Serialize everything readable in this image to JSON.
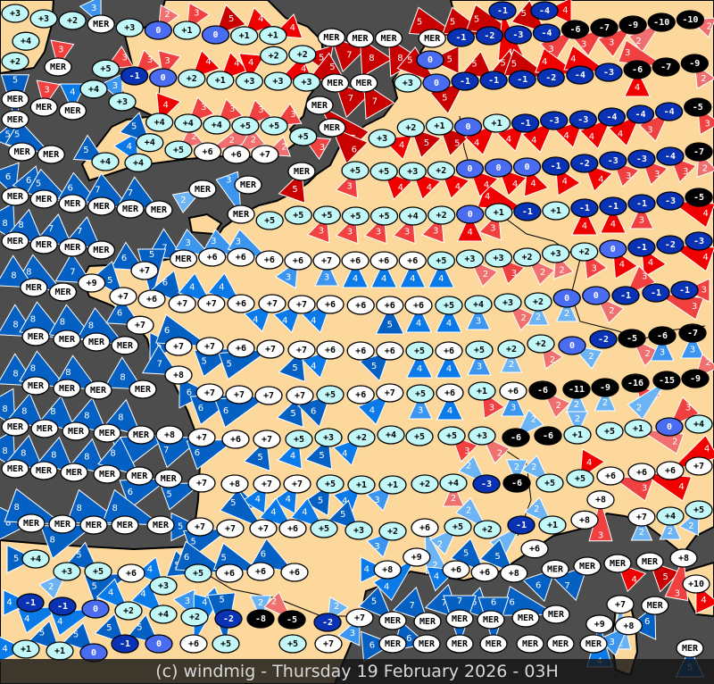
{
  "footer": {
    "credit": "(c) windmig - Thursday 19 February 2026 - 03H"
  },
  "colors": {
    "sea": "#4d4d4d",
    "land": "#fcd89c",
    "coast": "#000000",
    "temp_warm": "#ffffff",
    "temp_mild": "#c2f8f8",
    "temp_zero": "#4a6cf0",
    "temp_cold": "#0a32b4",
    "temp_frost": "#000000",
    "wind_red": {
      "2": "#f07070",
      "3": "#f04040",
      "4": "#f00000",
      "5": "#c80000"
    },
    "wind_blue": {
      "2": "#6cb4f4",
      "3": "#3c96f0",
      "4": "#0a7ae8",
      "5": "#0560c4"
    }
  },
  "legend_note": "",
  "stations": [
    [
      "+3",
      0,
      "",
      0
    ],
    [
      "+3",
      0,
      "",
      0
    ],
    [
      "+2",
      0,
      "",
      0
    ],
    [
      "MER",
      3,
      "b",
      315
    ],
    [
      "+4",
      0,
      "",
      0
    ],
    [
      "+2",
      0,
      "",
      0
    ],
    [
      "MER",
      3,
      "r",
      10
    ],
    [
      "+3",
      0,
      "",
      0
    ],
    [
      "0",
      2,
      "r",
      30
    ],
    [
      "+1",
      3,
      "r",
      30
    ],
    [
      "0",
      5,
      "r",
      45
    ],
    [
      "+1",
      4,
      "r",
      45
    ],
    [
      "+1",
      4,
      "r",
      70
    ],
    [
      "+2",
      0,
      "",
      0
    ],
    [
      "+2",
      5,
      "r",
      80
    ],
    [
      "MER",
      7,
      "r",
      135
    ],
    [
      "MER",
      8,
      "r",
      150
    ],
    [
      "MER",
      8,
      "r",
      150
    ],
    [
      "MER",
      0,
      "",
      0
    ],
    [
      "-1",
      5,
      "r",
      270
    ],
    [
      "-2",
      5,
      "r",
      270
    ],
    [
      "-3",
      5,
      "r",
      270
    ],
    [
      "-4",
      5,
      "r",
      270
    ],
    [
      "-6",
      3,
      "r",
      250
    ],
    [
      "-7",
      3,
      "r",
      250
    ],
    [
      "-9",
      3,
      "r",
      250
    ],
    [
      "-10",
      2,
      "r",
      250
    ],
    [
      "-10",
      2,
      "r",
      110
    ],
    [
      "-1",
      4,
      "r",
      110
    ],
    [
      "-4",
      4,
      "r",
      110
    ],
    [
      "MER",
      3,
      "r",
      10
    ],
    [
      "MER",
      4,
      "b",
      0
    ],
    [
      "MER",
      0,
      "",
      0
    ],
    [
      "+5",
      3,
      "r",
      80
    ],
    [
      "-1",
      3,
      "r",
      45
    ],
    [
      "0",
      3,
      "r",
      15
    ],
    [
      "+4",
      0,
      "",
      0
    ],
    [
      "+3",
      3,
      "b",
      315
    ],
    [
      "+2",
      4,
      "r",
      45
    ],
    [
      "+1",
      4,
      "r",
      45
    ],
    [
      "+3",
      4,
      "r",
      45
    ],
    [
      "+3",
      4,
      "r",
      45
    ],
    [
      "+3",
      5,
      "r",
      80
    ],
    [
      "MER",
      7,
      "r",
      135
    ],
    [
      "MER",
      7,
      "r",
      150
    ],
    [
      "0",
      5,
      "r",
      90
    ],
    [
      "+3",
      0,
      "",
      0
    ],
    [
      "0",
      5,
      "r",
      270
    ],
    [
      "-1",
      5,
      "r",
      270
    ],
    [
      "-1",
      5,
      "r",
      270
    ],
    [
      "-1",
      5,
      "r",
      270
    ],
    [
      "-2",
      5,
      "r",
      270
    ],
    [
      "-4",
      4,
      "r",
      270
    ],
    [
      "-3",
      4,
      "r",
      270
    ],
    [
      "-6",
      4,
      "r",
      180
    ],
    [
      "-7",
      3,
      "r",
      250
    ],
    [
      "-9",
      2,
      "r",
      110
    ],
    [
      "+4",
      4,
      "r",
      20
    ],
    [
      "+4",
      3,
      "r",
      45
    ],
    [
      "+4",
      3,
      "r",
      45
    ],
    [
      "+5",
      3,
      "r",
      45
    ],
    [
      "+5",
      3,
      "r",
      60
    ],
    [
      "+5",
      3,
      "r",
      120
    ],
    [
      "MER",
      7,
      "r",
      135
    ],
    [
      "MER",
      6,
      "r",
      135
    ],
    [
      "+2",
      5,
      "r",
      135
    ],
    [
      "+1",
      5,
      "r",
      135
    ],
    [
      "0",
      0,
      "",
      0
    ],
    [
      "+1",
      4,
      "r",
      225
    ],
    [
      "-1",
      4,
      "r",
      225
    ],
    [
      "-3",
      4,
      "r",
      225
    ],
    [
      "-3",
      4,
      "r",
      225
    ],
    [
      "-4",
      4,
      "r",
      225
    ],
    [
      "-4",
      4,
      "r",
      225
    ],
    [
      "-4",
      3,
      "r",
      225
    ],
    [
      "-5",
      3,
      "r",
      90
    ],
    [
      "+3",
      4,
      "r",
      90
    ],
    [
      "MER",
      5,
      "b",
      300
    ],
    [
      "MER",
      5,
      "b",
      300
    ],
    [
      "MER",
      5,
      "b",
      300
    ],
    [
      "MER",
      6,
      "b",
      300
    ],
    [
      "MER",
      6,
      "b",
      300
    ],
    [
      "MER",
      5,
      "b",
      300
    ],
    [
      "MER",
      6,
      "b",
      300
    ],
    [
      "MER",
      7,
      "b",
      300
    ],
    [
      "MER",
      7,
      "b",
      300
    ],
    [
      "+4",
      5,
      "b",
      300
    ],
    [
      "+4",
      4,
      "b",
      330
    ],
    [
      "+4",
      5,
      "b",
      315
    ],
    [
      "+5",
      2,
      "r",
      30
    ],
    [
      "+6",
      2,
      "r",
      45
    ],
    [
      "+6",
      2,
      "r",
      30
    ],
    [
      "+7",
      2,
      "r",
      70
    ],
    [
      "MER",
      2,
      "b",
      240
    ],
    [
      "MER",
      0,
      "",
      0
    ],
    [
      "MER",
      3,
      "b",
      0
    ],
    [
      "MER",
      5,
      "r",
      200
    ],
    [
      "+5",
      0,
      "",
      0
    ],
    [
      "+5",
      0,
      "",
      0
    ],
    [
      "+5",
      3,
      "r",
      200
    ],
    [
      "+5",
      3,
      "r",
      200
    ],
    [
      "+5",
      3,
      "r",
      200
    ],
    [
      "+4",
      3,
      "r",
      200
    ],
    [
      "+2",
      3,
      "r",
      200
    ],
    [
      "0",
      4,
      "r",
      180
    ],
    [
      "+1",
      3,
      "r",
      200
    ],
    [
      "-1",
      4,
      "r",
      270
    ],
    [
      "+1",
      0,
      "",
      0
    ],
    [
      "-1",
      4,
      "r",
      180
    ],
    [
      "-1",
      4,
      "r",
      180
    ],
    [
      "-1",
      3,
      "r",
      180
    ],
    [
      "-3",
      4,
      "r",
      110
    ],
    [
      "-5",
      0,
      "",
      0
    ],
    [
      "+5",
      3,
      "r",
      200
    ],
    [
      "+5",
      4,
      "r",
      135
    ],
    [
      "+3",
      4,
      "r",
      135
    ],
    [
      "+2",
      4,
      "r",
      135
    ],
    [
      "0",
      4,
      "r",
      135
    ],
    [
      "0",
      4,
      "r",
      135
    ],
    [
      "0",
      4,
      "r",
      160
    ],
    [
      "-1",
      4,
      "r",
      150
    ],
    [
      "-2",
      4,
      "r",
      135
    ],
    [
      "-3",
      3,
      "r",
      135
    ],
    [
      "-3",
      3,
      "r",
      135
    ],
    [
      "-4",
      3,
      "r",
      135
    ],
    [
      "-7",
      2,
      "r",
      120
    ],
    [
      "MER",
      7,
      "b",
      300
    ],
    [
      "+6",
      3,
      "b",
      300
    ],
    [
      "+6",
      3,
      "b",
      300
    ],
    [
      "+6",
      3,
      "b",
      300
    ],
    [
      "+6",
      3,
      "b",
      210
    ],
    [
      "+7",
      3,
      "b",
      180
    ],
    [
      "+6",
      4,
      "b",
      180
    ],
    [
      "+6",
      4,
      "b",
      180
    ],
    [
      "+6",
      4,
      "b",
      180
    ],
    [
      "+5",
      4,
      "b",
      180
    ],
    [
      "+3",
      2,
      "r",
      135
    ],
    [
      "+3",
      3,
      "r",
      135
    ],
    [
      "+2",
      2,
      "r",
      135
    ],
    [
      "+3",
      2,
      "r",
      160
    ],
    [
      "+2",
      3,
      "r",
      150
    ],
    [
      "0",
      4,
      "r",
      150
    ],
    [
      "-1",
      4,
      "r",
      150
    ],
    [
      "-2",
      4,
      "r",
      110
    ],
    [
      "-3",
      0,
      "",
      0
    ],
    [
      "MER",
      8,
      "b",
      290
    ],
    [
      "MER",
      8,
      "b",
      290
    ],
    [
      "MER",
      7,
      "b",
      290
    ],
    [
      "MER",
      7,
      "b",
      290
    ],
    [
      "+9",
      7,
      "b",
      300
    ],
    [
      "MER",
      8,
      "b",
      300
    ],
    [
      "MER",
      8,
      "b",
      300
    ],
    [
      "+7",
      6,
      "b",
      300
    ],
    [
      "+7",
      5,
      "b",
      300
    ],
    [
      "+6",
      5,
      "b",
      300
    ],
    [
      "+7",
      6,
      "b",
      300
    ],
    [
      "+7",
      4,
      "b",
      270
    ],
    [
      "+6",
      4,
      "b",
      270
    ],
    [
      "+7",
      4,
      "b",
      225
    ],
    [
      "+7",
      4,
      "b",
      225
    ],
    [
      "+6",
      4,
      "b",
      225
    ],
    [
      "+6",
      0,
      "",
      0
    ],
    [
      "+6",
      5,
      "b",
      180
    ],
    [
      "+6",
      4,
      "b",
      180
    ],
    [
      "+5",
      4,
      "b",
      180
    ],
    [
      "+4",
      3,
      "b",
      180
    ],
    [
      "+3",
      2,
      "r",
      135
    ],
    [
      "+2",
      2,
      "b",
      180
    ],
    [
      "0",
      2,
      "b",
      180
    ],
    [
      "0",
      2,
      "r",
      135
    ],
    [
      "-1",
      3,
      "r",
      45
    ],
    [
      "-1",
      3,
      "r",
      90
    ],
    [
      "-1",
      3,
      "r",
      90
    ],
    [
      "MER",
      8,
      "b",
      300
    ],
    [
      "MER",
      8,
      "b",
      300
    ],
    [
      "MER",
      8,
      "b",
      300
    ],
    [
      "MER",
      8,
      "b",
      300
    ],
    [
      "+7",
      6,
      "b",
      300
    ],
    [
      "+7",
      5,
      "b",
      270
    ],
    [
      "+7",
      6,
      "b",
      270
    ],
    [
      "+6",
      5,
      "b",
      270
    ],
    [
      "+7",
      5,
      "b",
      270
    ],
    [
      "+7",
      5,
      "b",
      200
    ],
    [
      "+6",
      4,
      "b",
      225
    ],
    [
      "+6",
      0,
      "",
      0
    ],
    [
      "+6",
      5,
      "b",
      225
    ],
    [
      "+5",
      4,
      "b",
      180
    ],
    [
      "+6",
      4,
      "b",
      180
    ],
    [
      "+5",
      3,
      "b",
      180
    ],
    [
      "+2",
      2,
      "b",
      180
    ],
    [
      "+2",
      2,
      "r",
      145
    ],
    [
      "0",
      2,
      "b",
      120
    ],
    [
      "-2",
      0,
      "",
      0
    ],
    [
      "-5",
      2,
      "r",
      135
    ],
    [
      "-6",
      3,
      "b",
      180
    ],
    [
      "-7",
      3,
      "b",
      180
    ],
    [
      "MER",
      8,
      "b",
      300
    ],
    [
      "MER",
      8,
      "b",
      300
    ],
    [
      "MER",
      8,
      "b",
      300
    ],
    [
      "MER",
      8,
      "b",
      300
    ],
    [
      "+8",
      7,
      "b",
      300
    ],
    [
      "+7",
      6,
      "b",
      270
    ],
    [
      "+7",
      6,
      "b",
      270
    ],
    [
      "+7",
      6,
      "b",
      270
    ],
    [
      "+7",
      5,
      "b",
      200
    ],
    [
      "+5",
      6,
      "b",
      225
    ],
    [
      "+6",
      0,
      "",
      0
    ],
    [
      "+7",
      4,
      "b",
      225
    ],
    [
      "+5",
      3,
      "b",
      180
    ],
    [
      "+6",
      4,
      "b",
      180
    ],
    [
      "+1",
      3,
      "r",
      150
    ],
    [
      "+6",
      3,
      "b",
      180
    ],
    [
      "-6",
      2,
      "r",
      135
    ],
    [
      "-11",
      2,
      "b",
      180
    ],
    [
      "-9",
      2,
      "b",
      180
    ],
    [
      "-16",
      3,
      "r",
      140
    ],
    [
      "-15",
      2,
      "b",
      225
    ],
    [
      "-9",
      2,
      "r",
      60
    ],
    [
      "MER",
      8,
      "b",
      290
    ],
    [
      "MER",
      8,
      "b",
      290
    ],
    [
      "MER",
      8,
      "b",
      290
    ],
    [
      "MER",
      8,
      "b",
      290
    ],
    [
      "MER",
      8,
      "b",
      290
    ],
    [
      "+8",
      8,
      "b",
      270
    ],
    [
      "+7",
      7,
      "b",
      270
    ],
    [
      "+6",
      6,
      "b",
      270
    ],
    [
      "+7",
      5,
      "b",
      200
    ],
    [
      "+5",
      4,
      "b",
      200
    ],
    [
      "+3",
      5,
      "b",
      200
    ],
    [
      "+2",
      4,
      "b",
      225
    ],
    [
      "+4",
      0,
      "",
      0
    ],
    [
      "+5",
      0,
      "",
      0
    ],
    [
      "+5",
      3,
      "r",
      135
    ],
    [
      "+3",
      2,
      "r",
      135
    ],
    [
      "-6",
      2,
      "b",
      45
    ],
    [
      "-6",
      0,
      "",
      0
    ],
    [
      "+1",
      2,
      "b",
      0
    ],
    [
      "+5",
      0,
      "",
      0
    ],
    [
      "+1",
      2,
      "r",
      90
    ],
    [
      "0",
      3,
      "r",
      45
    ],
    [
      "+4",
      0,
      "",
      0
    ],
    [
      "MER",
      8,
      "b",
      290
    ],
    [
      "MER",
      8,
      "b",
      290
    ],
    [
      "MER",
      8,
      "b",
      290
    ],
    [
      "MER",
      8,
      "b",
      290
    ],
    [
      "MER",
      8,
      "b",
      290
    ],
    [
      "MER",
      6,
      "b",
      270
    ],
    [
      "+7",
      5,
      "b",
      270
    ],
    [
      "+8",
      5,
      "b",
      160
    ],
    [
      "+7",
      4,
      "b",
      210
    ],
    [
      "+7",
      4,
      "b",
      210
    ],
    [
      "+5",
      5,
      "b",
      210
    ],
    [
      "+1",
      4,
      "b",
      225
    ],
    [
      "+1",
      3,
      "b",
      225
    ],
    [
      "+2",
      0,
      "",
      0
    ],
    [
      "+4",
      2,
      "r",
      180
    ],
    [
      "-3",
      2,
      "b",
      315
    ],
    [
      "-6",
      2,
      "b",
      0
    ],
    [
      "+5",
      2,
      "b",
      315
    ],
    [
      "+5",
      4,
      "r",
      30
    ],
    [
      "+6",
      3,
      "r",
      90
    ],
    [
      "+6",
      4,
      "r",
      90
    ],
    [
      "+6",
      4,
      "r",
      60
    ],
    [
      "+7",
      0,
      "",
      0
    ],
    [
      "MER",
      8,
      "b",
      270
    ],
    [
      "MER",
      8,
      "b",
      270
    ],
    [
      "MER",
      8,
      "b",
      270
    ],
    [
      "MER",
      8,
      "b",
      270
    ],
    [
      "MER",
      8,
      "b",
      270
    ],
    [
      "+7",
      5,
      "b",
      270
    ],
    [
      "+7",
      5,
      "b",
      270
    ],
    [
      "+7",
      5,
      "b",
      270
    ],
    [
      "+6",
      4,
      "b",
      270
    ],
    [
      "+5",
      4,
      "b",
      270
    ],
    [
      "+3",
      5,
      "b",
      315
    ],
    [
      "+2",
      3,
      "b",
      225
    ],
    [
      "+6",
      2,
      "b",
      225
    ],
    [
      "+5",
      2,
      "b",
      225
    ],
    [
      "+2",
      2,
      "b",
      315
    ],
    [
      "-1",
      2,
      "b",
      225
    ],
    [
      "+1",
      2,
      "b",
      315
    ],
    [
      "+8",
      0,
      "",
      0
    ],
    [
      "+8",
      3,
      "r",
      180
    ],
    [
      "+7",
      2,
      "b",
      180
    ],
    [
      "+4",
      2,
      "b",
      180
    ],
    [
      "+5",
      2,
      "b",
      225
    ],
    [
      "+4",
      5,
      "b",
      270
    ],
    [
      "+3",
      2,
      "b",
      225
    ],
    [
      "+5",
      5,
      "b",
      270
    ],
    [
      "+6",
      5,
      "b",
      270
    ],
    [
      "+3",
      4,
      "b",
      300
    ],
    [
      "+5",
      5,
      "b",
      270
    ],
    [
      "+6",
      6,
      "b",
      270
    ],
    [
      "+6",
      5,
      "b",
      270
    ],
    [
      "+6",
      6,
      "b",
      300
    ],
    [
      "+8",
      4,
      "b",
      270
    ],
    [
      "+9",
      4,
      "b",
      225
    ],
    [
      "+6",
      4,
      "b",
      270
    ],
    [
      "+6",
      5,
      "b",
      315
    ],
    [
      "+8",
      5,
      "b",
      315
    ],
    [
      "+6",
      0,
      "",
      0
    ],
    [
      "MER",
      6,
      "b",
      225
    ],
    [
      "MER",
      7,
      "b",
      225
    ],
    [
      "MER",
      4,
      "r",
      135
    ],
    [
      "MER",
      5,
      "r",
      135
    ],
    [
      "+8",
      3,
      "r",
      150
    ],
    [
      "+10",
      4,
      "r",
      135
    ],
    [
      "-1",
      4,
      "b",
      270
    ],
    [
      "-1",
      4,
      "b",
      270
    ],
    [
      "0",
      4,
      "b",
      270
    ],
    [
      "+2",
      4,
      "b",
      315
    ],
    [
      "+4",
      4,
      "b",
      315
    ],
    [
      "+2",
      3,
      "b",
      315
    ],
    [
      "-2",
      4,
      "b",
      315
    ],
    [
      "-8",
      2,
      "b",
      0
    ],
    [
      "-5",
      2,
      "r",
      315
    ],
    [
      "-2",
      2,
      "b",
      30
    ],
    [
      "+7",
      3,
      "b",
      225
    ],
    [
      "MER",
      5,
      "b",
      315
    ],
    [
      "MER",
      7,
      "b",
      315
    ],
    [
      "MER",
      7,
      "b",
      315
    ],
    [
      "MER",
      6,
      "b",
      315
    ],
    [
      "MER",
      0,
      "",
      0
    ],
    [
      "MER",
      6,
      "b",
      225
    ],
    [
      "+7",
      2,
      "b",
      180
    ],
    [
      "MER",
      6,
      "b",
      225
    ],
    [
      "+9",
      4,
      "b",
      180
    ],
    [
      "+8",
      3,
      "b",
      225
    ],
    [
      "+1",
      4,
      "b",
      270
    ],
    [
      "+1",
      5,
      "b",
      315
    ],
    [
      "0",
      5,
      "b",
      315
    ],
    [
      "-1",
      5,
      "b",
      315
    ],
    [
      "0",
      5,
      "b",
      270
    ],
    [
      "+6",
      4,
      "b",
      315
    ],
    [
      "+5",
      5,
      "b",
      315
    ],
    [
      "+5",
      0,
      "",
      0
    ],
    [
      "+7",
      0,
      "",
      0
    ],
    [
      "MER",
      6,
      "b",
      225
    ],
    [
      "MER",
      6,
      "b",
      225
    ],
    [
      "MER",
      7,
      "b",
      300
    ],
    [
      "MER",
      6,
      "b",
      300
    ],
    [
      "MER",
      0,
      "",
      0
    ],
    [
      "MER",
      0,
      "",
      0
    ],
    [
      "MER",
      0,
      "",
      0
    ],
    [
      "MER",
      5,
      "b",
      180
    ]
  ]
}
